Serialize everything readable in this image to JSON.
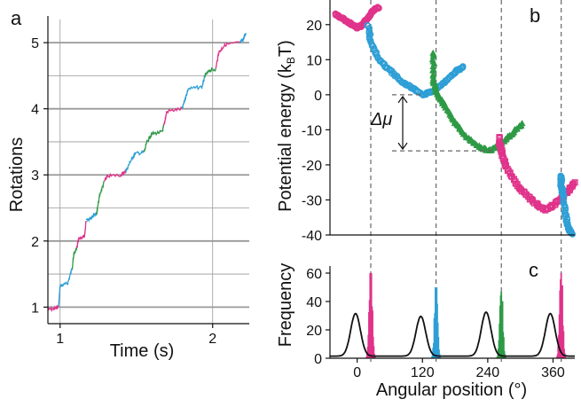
{
  "colors": {
    "magenta": "#e0338a",
    "blue": "#2e9fd6",
    "green": "#2e9a46",
    "black": "#111111",
    "grid": "#999999",
    "guide": "#666666"
  },
  "panels": {
    "a": {
      "letter": "a"
    },
    "b": {
      "letter": "b",
      "delta_label": "Δμ"
    },
    "c": {
      "letter": "c"
    }
  },
  "chart_data": [
    {
      "panel": "a",
      "type": "line",
      "xlabel": "Time (s)",
      "ylabel": "Rotations",
      "xlim": [
        0.92,
        2.24
      ],
      "ylim": [
        0.75,
        5.35
      ],
      "xticks": [
        1,
        2
      ],
      "yticks": [
        1,
        2,
        3,
        4,
        5
      ],
      "grid": true,
      "series": [
        {
          "color": "magenta",
          "points": [
            [
              0.92,
              0.96
            ],
            [
              0.97,
              0.98
            ],
            [
              0.99,
              1.02
            ]
          ]
        },
        {
          "color": "blue",
          "points": [
            [
              0.99,
              1.02
            ],
            [
              1.0,
              1.32
            ],
            [
              1.05,
              1.36
            ],
            [
              1.08,
              1.6
            ]
          ]
        },
        {
          "color": "green",
          "points": [
            [
              1.08,
              1.6
            ],
            [
              1.09,
              1.8
            ],
            [
              1.11,
              1.9
            ]
          ]
        },
        {
          "color": "magenta",
          "points": [
            [
              1.11,
              1.9
            ],
            [
              1.12,
              2.02
            ],
            [
              1.16,
              2.06
            ],
            [
              1.17,
              2.3
            ]
          ]
        },
        {
          "color": "blue",
          "points": [
            [
              1.17,
              2.3
            ],
            [
              1.2,
              2.35
            ],
            [
              1.22,
              2.4
            ],
            [
              1.24,
              2.42
            ]
          ]
        },
        {
          "color": "green",
          "points": [
            [
              1.24,
              2.42
            ],
            [
              1.26,
              2.7
            ],
            [
              1.29,
              2.9
            ]
          ]
        },
        {
          "color": "magenta",
          "points": [
            [
              1.29,
              2.9
            ],
            [
              1.31,
              2.98
            ],
            [
              1.4,
              3.0
            ],
            [
              1.43,
              3.05
            ]
          ]
        },
        {
          "color": "blue",
          "points": [
            [
              1.43,
              3.05
            ],
            [
              1.46,
              3.2
            ],
            [
              1.49,
              3.32
            ],
            [
              1.55,
              3.34
            ]
          ]
        },
        {
          "color": "green",
          "points": [
            [
              1.55,
              3.34
            ],
            [
              1.57,
              3.5
            ],
            [
              1.6,
              3.62
            ],
            [
              1.67,
              3.65
            ],
            [
              1.68,
              3.75
            ]
          ]
        },
        {
          "color": "magenta",
          "points": [
            [
              1.68,
              3.75
            ],
            [
              1.7,
              3.96
            ],
            [
              1.8,
              4.0
            ]
          ]
        },
        {
          "color": "blue",
          "points": [
            [
              1.8,
              4.0
            ],
            [
              1.82,
              4.15
            ],
            [
              1.84,
              4.3
            ],
            [
              1.93,
              4.33
            ],
            [
              1.95,
              4.5
            ]
          ]
        },
        {
          "color": "green",
          "points": [
            [
              1.95,
              4.5
            ],
            [
              1.98,
              4.58
            ],
            [
              2.02,
              4.6
            ]
          ]
        },
        {
          "color": "magenta",
          "points": [
            [
              2.02,
              4.6
            ],
            [
              2.04,
              4.85
            ],
            [
              2.08,
              4.97
            ],
            [
              2.18,
              5.0
            ]
          ]
        },
        {
          "color": "blue",
          "points": [
            [
              2.18,
              5.0
            ],
            [
              2.2,
              5.05
            ],
            [
              2.22,
              5.15
            ]
          ]
        }
      ]
    },
    {
      "panel": "b",
      "type": "scatter",
      "xlabel": "",
      "ylabel": "Potential energy (kBT)",
      "xlim": [
        -50,
        400
      ],
      "ylim": [
        -40,
        25
      ],
      "yticks": [
        20,
        10,
        0,
        -10,
        -20,
        -30,
        -40
      ],
      "guides_x": [
        25,
        145,
        265,
        375
      ],
      "delta_mu": {
        "upper": 0,
        "lower": -16
      },
      "series": [
        {
          "color": "magenta",
          "marker": "circle",
          "points": [
            [
              -40,
              23
            ],
            [
              -30,
              22
            ],
            [
              -20,
              21
            ],
            [
              -10,
              20
            ],
            [
              0,
              19
            ],
            [
              10,
              20
            ],
            [
              20,
              22
            ],
            [
              30,
              24
            ],
            [
              40,
              25
            ]
          ]
        },
        {
          "color": "blue",
          "marker": "circle",
          "points": [
            [
              20,
              20
            ],
            [
              25,
              15
            ],
            [
              40,
              10
            ],
            [
              60,
              7
            ],
            [
              80,
              4
            ],
            [
              100,
              2
            ],
            [
              120,
              0
            ],
            [
              140,
              1
            ],
            [
              155,
              3
            ],
            [
              170,
              5
            ],
            [
              185,
              7
            ],
            [
              195,
              8
            ]
          ]
        },
        {
          "color": "green",
          "marker": "triangle",
          "points": [
            [
              140,
              12
            ],
            [
              140,
              4
            ],
            [
              145,
              1
            ],
            [
              160,
              -3
            ],
            [
              180,
              -8
            ],
            [
              200,
              -12
            ],
            [
              225,
              -15
            ],
            [
              245,
              -16
            ],
            [
              265,
              -14
            ],
            [
              285,
              -11
            ],
            [
              305,
              -8
            ]
          ]
        },
        {
          "color": "magenta",
          "marker": "square",
          "points": [
            [
              260,
              -12
            ],
            [
              265,
              -16
            ],
            [
              275,
              -21
            ],
            [
              295,
              -26
            ],
            [
              320,
              -30
            ],
            [
              345,
              -33
            ],
            [
              365,
              -31
            ],
            [
              385,
              -28
            ],
            [
              400,
              -25
            ]
          ]
        },
        {
          "color": "blue",
          "marker": "circle",
          "points": [
            [
              375,
              -23
            ],
            [
              375,
              -26
            ],
            [
              378,
              -28
            ],
            [
              382,
              -34
            ],
            [
              388,
              -38
            ],
            [
              395,
              -40
            ]
          ]
        }
      ]
    },
    {
      "panel": "c",
      "type": "bar",
      "xlabel": "Angular position (°)",
      "ylabel": "Frequency",
      "xlim": [
        -50,
        400
      ],
      "ylim": [
        0,
        65
      ],
      "xticks": [
        0,
        120,
        240,
        360
      ],
      "yticks": [
        0,
        20,
        40,
        60
      ],
      "histograms": [
        {
          "color": "magenta",
          "center": 25,
          "peak": 60
        },
        {
          "color": "blue",
          "center": 145,
          "peak": 50
        },
        {
          "color": "green",
          "center": 265,
          "peak": 47
        },
        {
          "color": "magenta",
          "center": 375,
          "peak": 60
        }
      ],
      "curve_peaks": [
        {
          "center": -3,
          "peak": 30
        },
        {
          "center": 117,
          "peak": 28
        },
        {
          "center": 237,
          "peak": 31
        },
        {
          "center": 355,
          "peak": 30
        }
      ]
    }
  ]
}
